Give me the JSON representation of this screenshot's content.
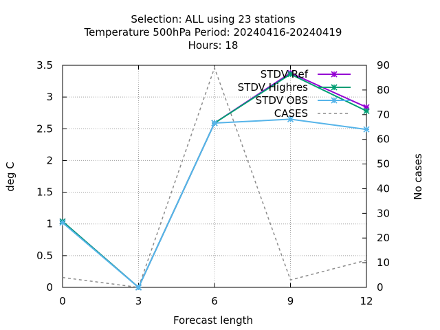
{
  "chart_data": {
    "type": "line",
    "title_lines": [
      "Selection: ALL using    23 stations",
      "Temperature 500hPa    Period: 20240416-20240419",
      "Hours:  18"
    ],
    "xlabel": "Forecast length",
    "ylabel": "deg C",
    "y2label": "No cases",
    "x": [
      0,
      3,
      6,
      9,
      12
    ],
    "xlim": [
      0,
      12
    ],
    "ylim": [
      0,
      3.5
    ],
    "y2lim": [
      0,
      90
    ],
    "xticks": [
      "0",
      "3",
      "6",
      "9",
      "12"
    ],
    "yticks": [
      "0",
      "0.5",
      "1",
      "1.5",
      "2",
      "2.5",
      "3",
      "3.5"
    ],
    "y2ticks": [
      "0",
      "10",
      "20",
      "30",
      "40",
      "50",
      "60",
      "70",
      "80",
      "90"
    ],
    "grid": true,
    "legend_position": "top-right",
    "series": [
      {
        "name": "STDV Ref",
        "axis": "y",
        "color": "#9400d3",
        "dash": false,
        "marker": "x",
        "values": [
          1.04,
          0.0,
          2.59,
          3.38,
          2.84
        ]
      },
      {
        "name": "STDV Highres",
        "axis": "y",
        "color": "#009e73",
        "dash": false,
        "marker": "x",
        "values": [
          1.04,
          0.0,
          2.59,
          3.36,
          2.78
        ]
      },
      {
        "name": "STDV OBS",
        "axis": "y",
        "color": "#56b4e9",
        "dash": false,
        "marker": "x",
        "values": [
          1.02,
          0.0,
          2.59,
          2.65,
          2.49
        ]
      },
      {
        "name": "CASES",
        "axis": "y2",
        "color": "#8c8c8c",
        "dash": true,
        "marker": "none",
        "values": [
          4,
          0,
          89,
          3,
          11
        ]
      }
    ]
  }
}
